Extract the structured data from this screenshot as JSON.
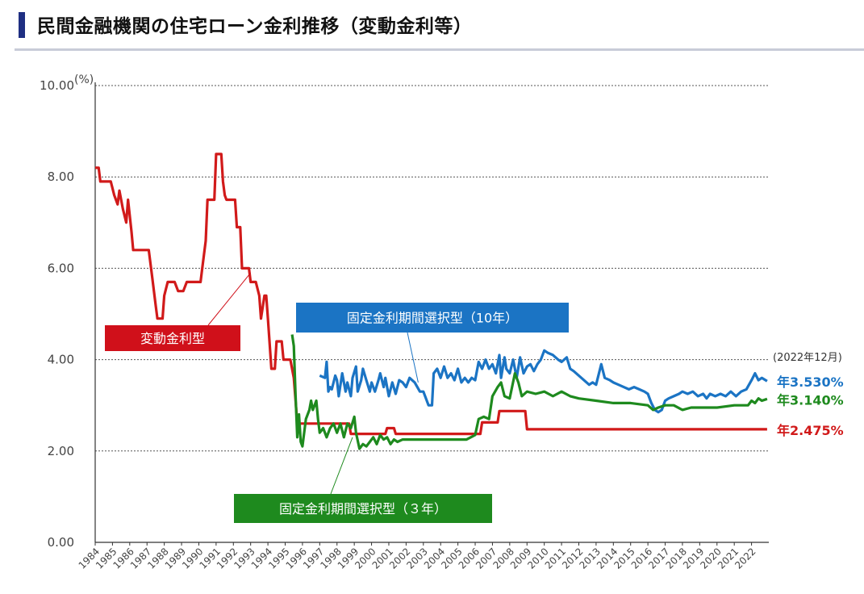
{
  "header": {
    "title": "民間金融機関の住宅ローン金利推移（変動金利等）"
  },
  "chart_data": {
    "type": "line",
    "unit": "(%)",
    "ylim": [
      0,
      10
    ],
    "yticks": [
      "0.00",
      "2.00",
      "4.00",
      "6.00",
      "8.00",
      "10.00"
    ],
    "xlim": [
      1984,
      2023
    ],
    "xticks": [
      "1984",
      "1985",
      "1986",
      "1987",
      "1988",
      "1989",
      "1990",
      "1991",
      "1992",
      "1993",
      "1994",
      "1995",
      "1996",
      "1997",
      "1998",
      "1999",
      "2000",
      "2001",
      "2002",
      "2003",
      "2004",
      "2005",
      "2006",
      "2007",
      "2008",
      "2009",
      "2010",
      "2011",
      "2012",
      "2013",
      "2014",
      "2015",
      "2016",
      "2017",
      "2018",
      "2019",
      "2020",
      "2021",
      "2022"
    ],
    "grid": "horizontal dotted",
    "as_of_note": "(2022年12月)",
    "series": [
      {
        "name": "変動金利型",
        "color": "#d11a1a",
        "end_label": "年2.475%",
        "points": [
          [
            1984.0,
            8.2
          ],
          [
            1984.2,
            8.2
          ],
          [
            1984.3,
            7.9
          ],
          [
            1984.9,
            7.9
          ],
          [
            1985.1,
            7.6
          ],
          [
            1985.3,
            7.4
          ],
          [
            1985.4,
            7.7
          ],
          [
            1985.6,
            7.3
          ],
          [
            1985.8,
            7.0
          ],
          [
            1985.9,
            7.5
          ],
          [
            1986.1,
            6.8
          ],
          [
            1986.2,
            6.4
          ],
          [
            1986.6,
            6.4
          ],
          [
            1987.1,
            6.4
          ],
          [
            1987.3,
            5.8
          ],
          [
            1987.5,
            5.2
          ],
          [
            1987.6,
            4.9
          ],
          [
            1987.9,
            4.9
          ],
          [
            1988.0,
            5.4
          ],
          [
            1988.2,
            5.7
          ],
          [
            1988.6,
            5.7
          ],
          [
            1988.8,
            5.5
          ],
          [
            1989.1,
            5.5
          ],
          [
            1989.3,
            5.7
          ],
          [
            1989.7,
            5.7
          ],
          [
            1990.1,
            5.7
          ],
          [
            1990.2,
            6.0
          ],
          [
            1990.4,
            6.6
          ],
          [
            1990.5,
            7.5
          ],
          [
            1990.9,
            7.5
          ],
          [
            1991.0,
            8.5
          ],
          [
            1991.3,
            8.5
          ],
          [
            1991.4,
            7.9
          ],
          [
            1991.5,
            7.6
          ],
          [
            1991.6,
            7.5
          ],
          [
            1992.1,
            7.5
          ],
          [
            1992.2,
            6.9
          ],
          [
            1992.4,
            6.9
          ],
          [
            1992.5,
            6.0
          ],
          [
            1992.9,
            6.0
          ],
          [
            1993.0,
            5.7
          ],
          [
            1993.3,
            5.7
          ],
          [
            1993.5,
            5.4
          ],
          [
            1993.6,
            4.9
          ],
          [
            1993.8,
            5.4
          ],
          [
            1993.9,
            5.4
          ],
          [
            1994.0,
            4.9
          ],
          [
            1994.2,
            3.8
          ],
          [
            1994.4,
            3.8
          ],
          [
            1994.5,
            4.4
          ],
          [
            1994.8,
            4.4
          ],
          [
            1994.9,
            4.0
          ],
          [
            1995.3,
            4.0
          ],
          [
            1995.5,
            3.6
          ],
          [
            1995.6,
            3.1
          ],
          [
            1995.7,
            2.6
          ],
          [
            1996.5,
            2.6
          ],
          [
            1998.7,
            2.6
          ],
          [
            1998.8,
            2.375
          ],
          [
            2000.8,
            2.375
          ],
          [
            2000.9,
            2.5
          ],
          [
            2001.3,
            2.5
          ],
          [
            2001.4,
            2.375
          ],
          [
            2006.3,
            2.375
          ],
          [
            2006.4,
            2.625
          ],
          [
            2007.3,
            2.625
          ],
          [
            2007.4,
            2.875
          ],
          [
            2008.9,
            2.875
          ],
          [
            2009.0,
            2.475
          ],
          [
            2022.9,
            2.475
          ]
        ]
      },
      {
        "name": "固定金利期間選択型（10年）",
        "color": "#1b74c4",
        "end_label": "年3.530%",
        "points": [
          [
            1997.0,
            3.65
          ],
          [
            1997.3,
            3.6
          ],
          [
            1997.4,
            3.95
          ],
          [
            1997.5,
            3.3
          ],
          [
            1997.6,
            3.4
          ],
          [
            1997.7,
            3.35
          ],
          [
            1997.9,
            3.65
          ],
          [
            1998.0,
            3.55
          ],
          [
            1998.1,
            3.2
          ],
          [
            1998.3,
            3.7
          ],
          [
            1998.5,
            3.3
          ],
          [
            1998.6,
            3.5
          ],
          [
            1998.8,
            3.2
          ],
          [
            1998.9,
            3.6
          ],
          [
            1999.1,
            3.85
          ],
          [
            1999.2,
            3.3
          ],
          [
            1999.4,
            3.55
          ],
          [
            1999.5,
            3.8
          ],
          [
            1999.7,
            3.55
          ],
          [
            1999.9,
            3.3
          ],
          [
            2000.0,
            3.5
          ],
          [
            2000.2,
            3.3
          ],
          [
            2000.4,
            3.55
          ],
          [
            2000.5,
            3.7
          ],
          [
            2000.7,
            3.4
          ],
          [
            2000.8,
            3.6
          ],
          [
            2001.0,
            3.2
          ],
          [
            2001.2,
            3.5
          ],
          [
            2001.4,
            3.25
          ],
          [
            2001.6,
            3.55
          ],
          [
            2001.8,
            3.5
          ],
          [
            2002.0,
            3.4
          ],
          [
            2002.2,
            3.6
          ],
          [
            2002.5,
            3.5
          ],
          [
            2002.8,
            3.3
          ],
          [
            2003.0,
            3.3
          ],
          [
            2003.3,
            3.0
          ],
          [
            2003.5,
            3.0
          ],
          [
            2003.6,
            3.7
          ],
          [
            2003.8,
            3.8
          ],
          [
            2004.0,
            3.6
          ],
          [
            2004.2,
            3.85
          ],
          [
            2004.4,
            3.6
          ],
          [
            2004.6,
            3.7
          ],
          [
            2004.8,
            3.55
          ],
          [
            2005.0,
            3.8
          ],
          [
            2005.2,
            3.5
          ],
          [
            2005.4,
            3.6
          ],
          [
            2005.6,
            3.5
          ],
          [
            2005.8,
            3.6
          ],
          [
            2006.0,
            3.55
          ],
          [
            2006.2,
            3.95
          ],
          [
            2006.4,
            3.8
          ],
          [
            2006.6,
            4.0
          ],
          [
            2006.8,
            3.8
          ],
          [
            2007.0,
            3.9
          ],
          [
            2007.2,
            3.7
          ],
          [
            2007.4,
            4.1
          ],
          [
            2007.5,
            3.6
          ],
          [
            2007.7,
            4.05
          ],
          [
            2007.8,
            3.8
          ],
          [
            2008.0,
            3.7
          ],
          [
            2008.2,
            4.0
          ],
          [
            2008.4,
            3.6
          ],
          [
            2008.6,
            4.05
          ],
          [
            2008.8,
            3.7
          ],
          [
            2009.0,
            3.85
          ],
          [
            2009.2,
            3.9
          ],
          [
            2009.4,
            3.75
          ],
          [
            2009.6,
            3.9
          ],
          [
            2009.8,
            4.0
          ],
          [
            2010.0,
            4.2
          ],
          [
            2010.2,
            4.15
          ],
          [
            2010.5,
            4.1
          ],
          [
            2010.8,
            4.0
          ],
          [
            2011.0,
            3.95
          ],
          [
            2011.3,
            4.05
          ],
          [
            2011.5,
            3.8
          ],
          [
            2011.7,
            3.75
          ],
          [
            2012.0,
            3.65
          ],
          [
            2012.3,
            3.55
          ],
          [
            2012.6,
            3.45
          ],
          [
            2012.8,
            3.5
          ],
          [
            2013.0,
            3.45
          ],
          [
            2013.3,
            3.9
          ],
          [
            2013.5,
            3.6
          ],
          [
            2013.8,
            3.55
          ],
          [
            2014.0,
            3.5
          ],
          [
            2014.3,
            3.45
          ],
          [
            2014.6,
            3.4
          ],
          [
            2014.9,
            3.35
          ],
          [
            2015.2,
            3.4
          ],
          [
            2015.5,
            3.35
          ],
          [
            2015.8,
            3.3
          ],
          [
            2016.0,
            3.25
          ],
          [
            2016.2,
            3.05
          ],
          [
            2016.4,
            2.9
          ],
          [
            2016.6,
            2.85
          ],
          [
            2016.8,
            2.9
          ],
          [
            2017.0,
            3.1
          ],
          [
            2017.2,
            3.15
          ],
          [
            2017.5,
            3.2
          ],
          [
            2017.8,
            3.25
          ],
          [
            2018.0,
            3.3
          ],
          [
            2018.3,
            3.25
          ],
          [
            2018.6,
            3.3
          ],
          [
            2018.9,
            3.2
          ],
          [
            2019.2,
            3.25
          ],
          [
            2019.4,
            3.15
          ],
          [
            2019.6,
            3.25
          ],
          [
            2019.9,
            3.2
          ],
          [
            2020.2,
            3.25
          ],
          [
            2020.5,
            3.2
          ],
          [
            2020.8,
            3.3
          ],
          [
            2021.1,
            3.2
          ],
          [
            2021.4,
            3.3
          ],
          [
            2021.7,
            3.35
          ],
          [
            2022.0,
            3.55
          ],
          [
            2022.2,
            3.7
          ],
          [
            2022.4,
            3.55
          ],
          [
            2022.6,
            3.6
          ],
          [
            2022.9,
            3.53
          ]
        ]
      },
      {
        "name": "固定金利期間選択型（３年）",
        "color": "#1e8a1e",
        "end_label": "年3.140%",
        "points": [
          [
            1995.4,
            4.55
          ],
          [
            1995.5,
            4.3
          ],
          [
            1995.6,
            3.2
          ],
          [
            1995.7,
            2.3
          ],
          [
            1995.8,
            2.8
          ],
          [
            1995.9,
            2.2
          ],
          [
            1996.0,
            2.1
          ],
          [
            1996.2,
            2.7
          ],
          [
            1996.4,
            2.9
          ],
          [
            1996.5,
            3.1
          ],
          [
            1996.6,
            2.9
          ],
          [
            1996.8,
            3.1
          ],
          [
            1996.9,
            2.7
          ],
          [
            1997.0,
            2.4
          ],
          [
            1997.2,
            2.5
          ],
          [
            1997.4,
            2.3
          ],
          [
            1997.6,
            2.5
          ],
          [
            1997.8,
            2.6
          ],
          [
            1998.0,
            2.4
          ],
          [
            1998.2,
            2.6
          ],
          [
            1998.4,
            2.3
          ],
          [
            1998.6,
            2.6
          ],
          [
            1998.8,
            2.5
          ],
          [
            1999.0,
            2.75
          ],
          [
            1999.1,
            2.4
          ],
          [
            1999.3,
            2.05
          ],
          [
            1999.5,
            2.15
          ],
          [
            1999.7,
            2.1
          ],
          [
            1999.9,
            2.2
          ],
          [
            2000.1,
            2.3
          ],
          [
            2000.3,
            2.15
          ],
          [
            2000.5,
            2.35
          ],
          [
            2000.7,
            2.25
          ],
          [
            2000.9,
            2.3
          ],
          [
            2001.1,
            2.15
          ],
          [
            2001.3,
            2.25
          ],
          [
            2001.5,
            2.2
          ],
          [
            2001.8,
            2.25
          ],
          [
            2004.0,
            2.25
          ],
          [
            2005.5,
            2.25
          ],
          [
            2006.0,
            2.35
          ],
          [
            2006.2,
            2.7
          ],
          [
            2006.5,
            2.75
          ],
          [
            2006.8,
            2.7
          ],
          [
            2007.0,
            3.2
          ],
          [
            2007.3,
            3.4
          ],
          [
            2007.5,
            3.5
          ],
          [
            2007.7,
            3.2
          ],
          [
            2008.0,
            3.15
          ],
          [
            2008.3,
            3.7
          ],
          [
            2008.5,
            3.5
          ],
          [
            2008.7,
            3.2
          ],
          [
            2009.0,
            3.3
          ],
          [
            2009.5,
            3.25
          ],
          [
            2010.0,
            3.3
          ],
          [
            2010.5,
            3.2
          ],
          [
            2011.0,
            3.3
          ],
          [
            2011.5,
            3.2
          ],
          [
            2012.0,
            3.15
          ],
          [
            2013.0,
            3.1
          ],
          [
            2014.0,
            3.05
          ],
          [
            2015.0,
            3.05
          ],
          [
            2016.0,
            3.0
          ],
          [
            2016.3,
            2.9
          ],
          [
            2016.6,
            2.95
          ],
          [
            2017.0,
            3.0
          ],
          [
            2017.5,
            3.0
          ],
          [
            2018.0,
            2.9
          ],
          [
            2018.5,
            2.95
          ],
          [
            2019.0,
            2.95
          ],
          [
            2020.0,
            2.95
          ],
          [
            2021.0,
            3.0
          ],
          [
            2021.5,
            3.0
          ],
          [
            2021.8,
            3.0
          ],
          [
            2022.0,
            3.1
          ],
          [
            2022.2,
            3.05
          ],
          [
            2022.4,
            3.15
          ],
          [
            2022.6,
            3.1
          ],
          [
            2022.9,
            3.14
          ]
        ]
      }
    ],
    "annotations": [
      {
        "id": "hendo",
        "label": "変動金利型",
        "color": "#d0101a",
        "series_index": 0,
        "target": [
          1993.0,
          5.9
        ]
      },
      {
        "id": "fixed10",
        "label": "固定金利期間選択型（10年）",
        "color": "#1b74c4",
        "series_index": 1,
        "target": [
          2002.7,
          3.5
        ]
      },
      {
        "id": "fixed3",
        "label": "固定金利期間選択型（３年）",
        "color": "#1e8a1e",
        "series_index": 2,
        "target": [
          1998.9,
          2.3
        ]
      }
    ]
  }
}
